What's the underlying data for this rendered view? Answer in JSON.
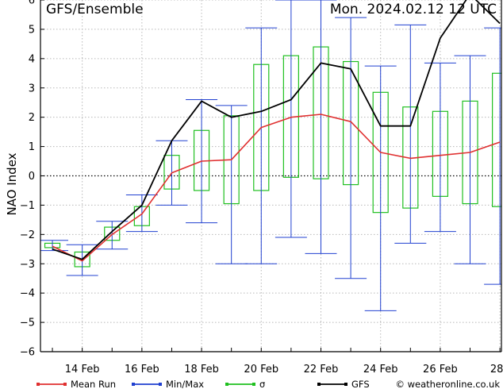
{
  "header": {
    "title": "GFS/Ensemble",
    "datetime": "Mon. 2024.02.12   12 UTC"
  },
  "credit": "© weatheronline.co.uk",
  "colors": {
    "mean": "#e03030",
    "minmax": "#2040d0",
    "sigma": "#20c020",
    "gfs": "#000000",
    "grid": "#b8b8b8"
  },
  "chart_data": {
    "type": "line",
    "title": "",
    "xlabel": "",
    "ylabel": "NAO Index",
    "ylim": [
      -6,
      6
    ],
    "y_ticks": [
      "−6",
      "−5",
      "−4",
      "−3",
      "−2",
      "−1",
      "0",
      "1",
      "2",
      "3",
      "4",
      "5",
      "6"
    ],
    "x_ticks": [
      "14 Feb",
      "16 Feb",
      "18 Feb",
      "20 Feb",
      "22 Feb",
      "24 Feb",
      "26 Feb",
      "28"
    ],
    "grid": true,
    "x": [
      13,
      14,
      15,
      16,
      17,
      18,
      19,
      20,
      21,
      22,
      23,
      24,
      25,
      26,
      27,
      28
    ],
    "series": [
      {
        "name": "Mean Run",
        "values": [
          -2.4,
          -2.9,
          -2.0,
          -1.3,
          0.1,
          0.5,
          0.55,
          1.65,
          2.0,
          2.1,
          1.85,
          0.8,
          0.6,
          0.7,
          0.8,
          1.15
        ]
      },
      {
        "name": "GFS",
        "values": [
          -2.5,
          -2.85,
          -1.9,
          -1.0,
          1.2,
          2.55,
          2.0,
          2.2,
          2.6,
          3.85,
          3.65,
          1.7,
          1.7,
          4.7,
          6.2,
          5.2
        ]
      }
    ],
    "minmax": {
      "name": "Min/Max",
      "min": [
        -2.55,
        -3.4,
        -2.5,
        -1.9,
        -1.0,
        -1.6,
        -3.0,
        -3.0,
        -2.1,
        -2.65,
        -3.5,
        -4.6,
        -2.3,
        -1.9,
        -3.0,
        -3.7
      ],
      "max": [
        -2.2,
        -2.35,
        -1.55,
        -0.65,
        1.2,
        2.6,
        2.4,
        5.05,
        6.0,
        6.0,
        5.4,
        3.75,
        5.15,
        3.85,
        4.1,
        5.05
      ]
    },
    "sigma": {
      "name": "σ",
      "low": [
        -2.45,
        -3.1,
        -2.2,
        -1.7,
        -0.45,
        -0.5,
        -0.95,
        -0.5,
        -0.05,
        -0.1,
        -0.3,
        -1.25,
        -1.1,
        -0.7,
        -0.95,
        -1.05
      ],
      "high": [
        -2.3,
        -2.6,
        -1.75,
        -1.05,
        0.7,
        1.55,
        2.05,
        3.8,
        4.1,
        4.4,
        3.9,
        2.85,
        2.35,
        2.2,
        2.55,
        3.5
      ]
    },
    "legend": {
      "position": "bottom",
      "items": [
        {
          "key": "mean",
          "label": "Mean Run"
        },
        {
          "key": "minmax",
          "label": "Min/Max"
        },
        {
          "key": "sigma",
          "label": "σ"
        },
        {
          "key": "gfs",
          "label": "GFS"
        }
      ]
    }
  }
}
